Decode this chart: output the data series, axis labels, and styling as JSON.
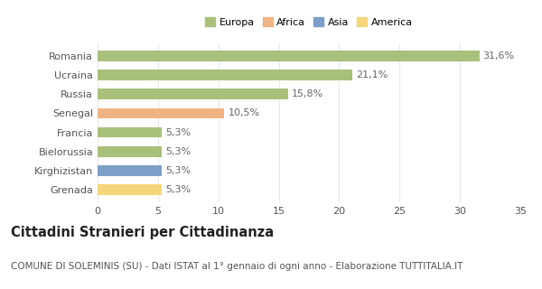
{
  "categories": [
    "Romania",
    "Ucraina",
    "Russia",
    "Senegal",
    "Francia",
    "Bielorussia",
    "Kirghizistan",
    "Grenada"
  ],
  "values": [
    31.6,
    21.1,
    15.8,
    10.5,
    5.3,
    5.3,
    5.3,
    5.3
  ],
  "labels": [
    "31,6%",
    "21,1%",
    "15,8%",
    "10,5%",
    "5,3%",
    "5,3%",
    "5,3%",
    "5,3%"
  ],
  "colors": [
    "#a8c07a",
    "#a8c07a",
    "#a8c07a",
    "#f0b482",
    "#a8c07a",
    "#a8c07a",
    "#7b9fc7",
    "#f5d67a"
  ],
  "legend_labels": [
    "Europa",
    "Africa",
    "Asia",
    "America"
  ],
  "legend_colors": [
    "#a8c07a",
    "#f0b482",
    "#7b9fc7",
    "#f5d67a"
  ],
  "xlim": [
    0,
    35
  ],
  "xticks": [
    0,
    5,
    10,
    15,
    20,
    25,
    30,
    35
  ],
  "title": "Cittadini Stranieri per Cittadinanza",
  "subtitle": "COMUNE DI SOLEMINIS (SU) - Dati ISTAT al 1° gennaio di ogni anno - Elaborazione TUTTITALIA.IT",
  "background_color": "#ffffff",
  "grid_color": "#e8e8e8",
  "bar_height": 0.55,
  "label_fontsize": 8,
  "tick_fontsize": 8,
  "title_fontsize": 10.5,
  "subtitle_fontsize": 7.5
}
